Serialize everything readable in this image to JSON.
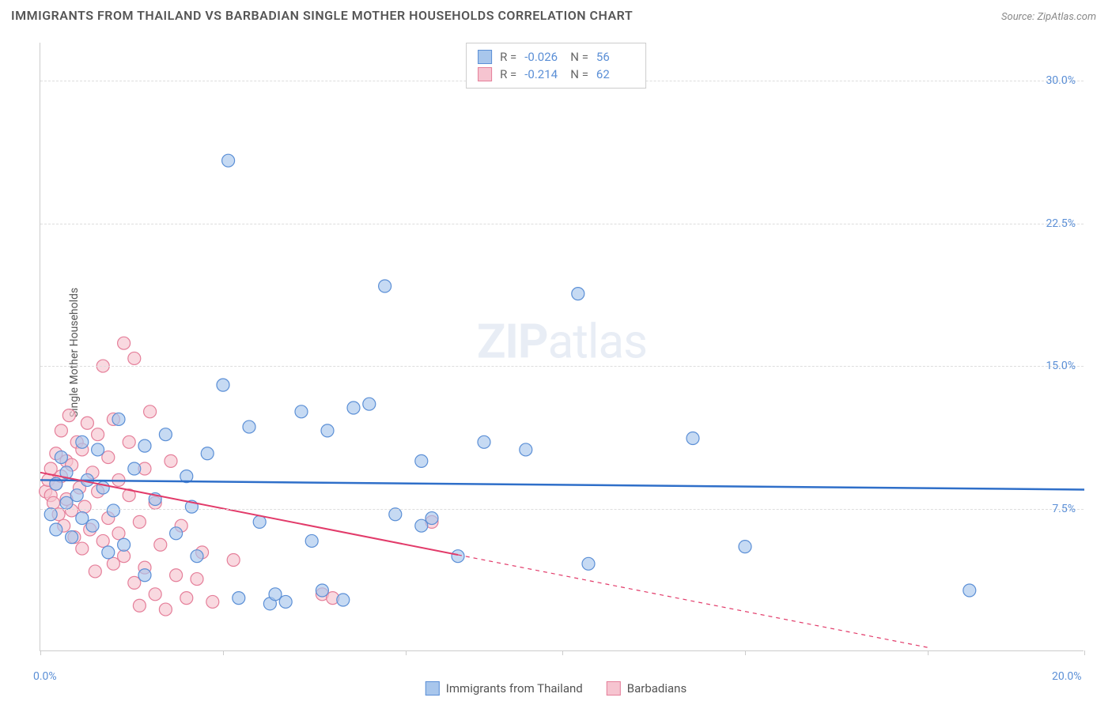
{
  "title": "IMMIGRANTS FROM THAILAND VS BARBADIAN SINGLE MOTHER HOUSEHOLDS CORRELATION CHART",
  "source_label": "Source: ",
  "source_name": "ZipAtlas.com",
  "ylabel": "Single Mother Households",
  "watermark_bold": "ZIP",
  "watermark_rest": "atlas",
  "chart": {
    "type": "scatter",
    "background_color": "#ffffff",
    "grid_color": "#dddddd",
    "axis_color": "#cccccc",
    "xlim": [
      0,
      20
    ],
    "ylim": [
      0,
      32
    ],
    "xtick_positions": [
      0,
      3.5,
      7,
      10,
      13.5,
      17,
      20
    ],
    "xlim_labels": [
      "0.0%",
      "20.0%"
    ],
    "yticks": [
      {
        "v": 7.5,
        "label": "7.5%"
      },
      {
        "v": 15.0,
        "label": "15.0%"
      },
      {
        "v": 22.5,
        "label": "22.5%"
      },
      {
        "v": 30.0,
        "label": "30.0%"
      }
    ],
    "series": [
      {
        "key": "thailand",
        "label": "Immigrants from Thailand",
        "marker_fill": "#a8c6ec",
        "marker_stroke": "#5b8fd6",
        "marker_radius": 8,
        "marker_opacity": 0.65,
        "line_color": "#2f6fc9",
        "line_width": 2.5,
        "r_value": "-0.026",
        "n_value": "56",
        "trend": {
          "x1": 0,
          "y1": 9.0,
          "x2": 20,
          "y2": 8.5,
          "solid_until": 20
        },
        "points": [
          [
            0.2,
            7.2
          ],
          [
            0.3,
            8.8
          ],
          [
            0.3,
            6.4
          ],
          [
            0.4,
            10.2
          ],
          [
            0.5,
            7.8
          ],
          [
            0.5,
            9.4
          ],
          [
            0.6,
            6.0
          ],
          [
            0.7,
            8.2
          ],
          [
            0.8,
            11.0
          ],
          [
            0.8,
            7.0
          ],
          [
            0.9,
            9.0
          ],
          [
            1.0,
            6.6
          ],
          [
            1.1,
            10.6
          ],
          [
            1.2,
            8.6
          ],
          [
            1.4,
            7.4
          ],
          [
            1.5,
            12.2
          ],
          [
            1.6,
            5.6
          ],
          [
            1.8,
            9.6
          ],
          [
            2.0,
            10.8
          ],
          [
            2.0,
            4.0
          ],
          [
            2.2,
            8.0
          ],
          [
            2.4,
            11.4
          ],
          [
            2.6,
            6.2
          ],
          [
            2.8,
            9.2
          ],
          [
            3.0,
            5.0
          ],
          [
            3.2,
            10.4
          ],
          [
            3.5,
            14.0
          ],
          [
            3.6,
            25.8
          ],
          [
            3.8,
            2.8
          ],
          [
            4.0,
            11.8
          ],
          [
            4.2,
            6.8
          ],
          [
            4.4,
            2.5
          ],
          [
            4.5,
            3.0
          ],
          [
            4.7,
            2.6
          ],
          [
            5.0,
            12.6
          ],
          [
            5.2,
            5.8
          ],
          [
            5.4,
            3.2
          ],
          [
            5.5,
            11.6
          ],
          [
            5.8,
            2.7
          ],
          [
            6.0,
            12.8
          ],
          [
            6.3,
            13.0
          ],
          [
            6.6,
            19.2
          ],
          [
            6.8,
            7.2
          ],
          [
            7.3,
            10.0
          ],
          [
            7.3,
            6.6
          ],
          [
            7.5,
            7.0
          ],
          [
            8.0,
            5.0
          ],
          [
            8.5,
            11.0
          ],
          [
            9.3,
            10.6
          ],
          [
            10.3,
            18.8
          ],
          [
            10.5,
            4.6
          ],
          [
            12.5,
            11.2
          ],
          [
            13.5,
            5.5
          ],
          [
            17.8,
            3.2
          ],
          [
            1.3,
            5.2
          ],
          [
            2.9,
            7.6
          ]
        ]
      },
      {
        "key": "barbadians",
        "label": "Barbadians",
        "marker_fill": "#f6c4d0",
        "marker_stroke": "#e57f9a",
        "marker_radius": 8,
        "marker_opacity": 0.65,
        "line_color": "#e23b6a",
        "line_width": 2,
        "r_value": "-0.214",
        "n_value": "62",
        "trend": {
          "x1": 0,
          "y1": 9.4,
          "x2": 17,
          "y2": 0.2,
          "solid_until": 8
        },
        "points": [
          [
            0.1,
            8.4
          ],
          [
            0.15,
            9.0
          ],
          [
            0.2,
            8.2
          ],
          [
            0.2,
            9.6
          ],
          [
            0.25,
            7.8
          ],
          [
            0.3,
            10.4
          ],
          [
            0.3,
            8.8
          ],
          [
            0.35,
            7.2
          ],
          [
            0.4,
            11.6
          ],
          [
            0.4,
            9.2
          ],
          [
            0.45,
            6.6
          ],
          [
            0.5,
            10.0
          ],
          [
            0.5,
            8.0
          ],
          [
            0.55,
            12.4
          ],
          [
            0.6,
            7.4
          ],
          [
            0.6,
            9.8
          ],
          [
            0.65,
            6.0
          ],
          [
            0.7,
            11.0
          ],
          [
            0.75,
            8.6
          ],
          [
            0.8,
            5.4
          ],
          [
            0.8,
            10.6
          ],
          [
            0.85,
            7.6
          ],
          [
            0.9,
            12.0
          ],
          [
            0.95,
            6.4
          ],
          [
            1.0,
            9.4
          ],
          [
            1.05,
            4.2
          ],
          [
            1.1,
            11.4
          ],
          [
            1.1,
            8.4
          ],
          [
            1.2,
            5.8
          ],
          [
            1.2,
            15.0
          ],
          [
            1.3,
            7.0
          ],
          [
            1.3,
            10.2
          ],
          [
            1.4,
            4.6
          ],
          [
            1.4,
            12.2
          ],
          [
            1.5,
            6.2
          ],
          [
            1.5,
            9.0
          ],
          [
            1.6,
            16.2
          ],
          [
            1.6,
            5.0
          ],
          [
            1.7,
            8.2
          ],
          [
            1.7,
            11.0
          ],
          [
            1.8,
            3.6
          ],
          [
            1.8,
            15.4
          ],
          [
            1.9,
            6.8
          ],
          [
            1.9,
            2.4
          ],
          [
            2.0,
            9.6
          ],
          [
            2.0,
            4.4
          ],
          [
            2.1,
            12.6
          ],
          [
            2.2,
            3.0
          ],
          [
            2.2,
            7.8
          ],
          [
            2.3,
            5.6
          ],
          [
            2.4,
            2.2
          ],
          [
            2.5,
            10.0
          ],
          [
            2.6,
            4.0
          ],
          [
            2.7,
            6.6
          ],
          [
            2.8,
            2.8
          ],
          [
            3.0,
            3.8
          ],
          [
            3.1,
            5.2
          ],
          [
            3.3,
            2.6
          ],
          [
            3.7,
            4.8
          ],
          [
            5.4,
            3.0
          ],
          [
            5.6,
            2.8
          ],
          [
            7.5,
            6.8
          ]
        ]
      }
    ]
  },
  "legend_stats_labels": {
    "r": "R =",
    "n": "N ="
  },
  "text_color": "#555555",
  "value_color": "#5b8fd6"
}
